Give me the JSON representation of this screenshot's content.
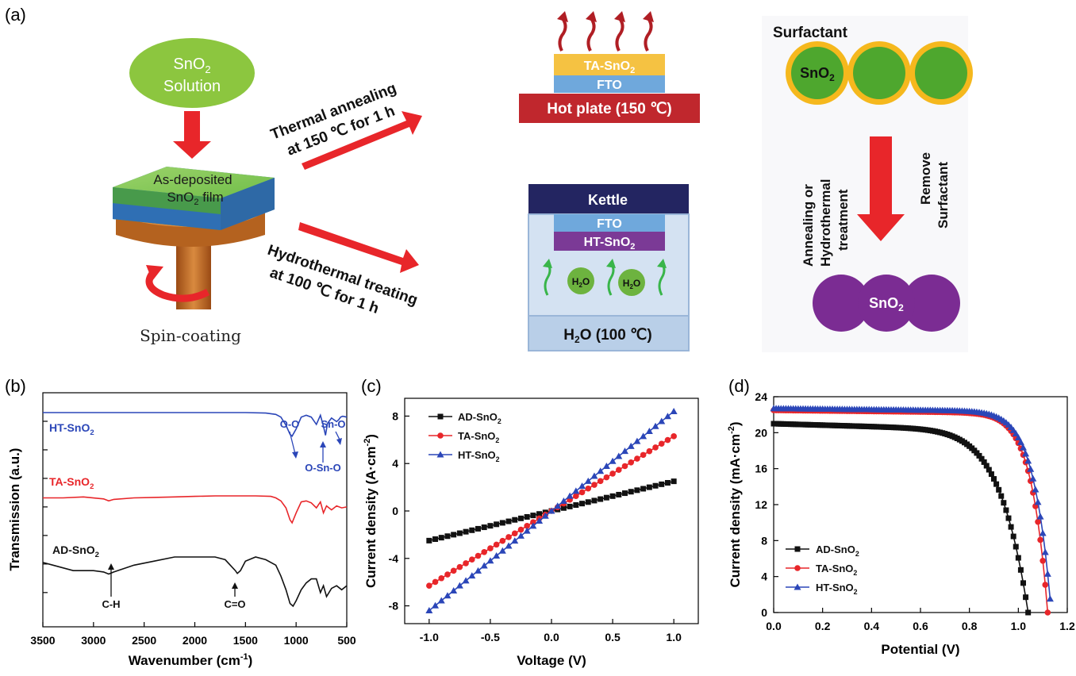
{
  "panels": {
    "a": "(a)",
    "b": "(b)",
    "c": "(c)",
    "d": "(d)"
  },
  "schematic": {
    "solution_line1": "SnO",
    "solution_sub": "2",
    "solution_line2": "Solution",
    "film_line1": "As-deposited",
    "film_line2a": "SnO",
    "film_sub": "2",
    "film_line2b": " film",
    "spin": "Spin-coating",
    "thermal_line1": "Thermal annealing",
    "thermal_line2": "at 150 ℃ for 1 h",
    "hydro_line1": "Hydrothermal treating",
    "hydro_line2": "at 100 ℃  for 1 h",
    "ta_layer": "TA-SnO",
    "fto": "FTO",
    "hotplate": "Hot plate (150 ℃)",
    "kettle": "Kettle",
    "ht_layer": "HT-SnO",
    "h2o_mol": "H",
    "h2o_mol_sub": "2",
    "h2o_mol_end": "O",
    "h2o_bath": "H",
    "h2o_bath_end": "O (100 ℃)",
    "surfactant": "Surfactant",
    "sno2": "SnO",
    "sub2": "2",
    "treat_line1": "Annealing or",
    "treat_line2": "Hydrothermal",
    "treat_line3": "treatment",
    "remove_line1": "Remove",
    "remove_line2": "Surfactant"
  },
  "colors": {
    "black": "#111111",
    "red": "#e8262a",
    "blue": "#2b46b8",
    "arrow_red": "#e8262a",
    "purple": "#7b2c93",
    "green": "#5aad3a",
    "gold": "#f5b81d",
    "navy": "#232561",
    "fto_blue": "#6fa8dc",
    "hotplate": "#c0272d"
  },
  "chart_data": [
    {
      "type": "line",
      "panel": "b",
      "xlabel": "Wavenumber (cm",
      "xlabel_sup": "-1",
      "xlabel_end": ")",
      "ylabel": "Transmission (a.u.)",
      "xlim": [
        3500,
        500
      ],
      "xticks": [
        "3500",
        "3000",
        "2500",
        "2000",
        "1500",
        "1000",
        "500"
      ],
      "series": [
        {
          "name": "HT-SnO",
          "name_sub": "2",
          "color": "#2b46b8",
          "x": [
            3500,
            3000,
            2500,
            2000,
            1500,
            1300,
            1200,
            1150,
            1100,
            1060,
            1040,
            1000,
            950,
            900,
            850,
            800,
            760,
            730,
            710,
            690,
            650,
            600,
            580,
            560,
            540,
            500
          ],
          "y": [
            0.98,
            0.98,
            0.98,
            0.98,
            0.98,
            0.975,
            0.96,
            0.93,
            0.84,
            0.74,
            0.72,
            0.8,
            0.93,
            0.95,
            0.93,
            0.85,
            0.95,
            0.83,
            0.73,
            0.86,
            0.92,
            0.88,
            0.9,
            0.93,
            0.94,
            0.93
          ]
        },
        {
          "name": "TA-SnO",
          "name_sub": "2",
          "color": "#e8262a",
          "x": [
            3500,
            3300,
            3100,
            2900,
            2850,
            2800,
            2600,
            2400,
            2200,
            2000,
            1800,
            1600,
            1400,
            1250,
            1200,
            1150,
            1100,
            1060,
            1040,
            1000,
            950,
            900,
            850,
            800,
            760,
            730,
            700,
            650,
            600,
            550,
            500
          ],
          "y": [
            0.6,
            0.6,
            0.61,
            0.59,
            0.57,
            0.585,
            0.6,
            0.605,
            0.61,
            0.615,
            0.62,
            0.62,
            0.62,
            0.615,
            0.6,
            0.57,
            0.5,
            0.38,
            0.35,
            0.45,
            0.56,
            0.57,
            0.55,
            0.5,
            0.56,
            0.45,
            0.52,
            0.48,
            0.52,
            0.5,
            0.51
          ]
        },
        {
          "name": "AD-SnO",
          "name_sub": "2",
          "color": "#111111",
          "x": [
            3500,
            3400,
            3200,
            3000,
            2900,
            2850,
            2800,
            2600,
            2400,
            2200,
            2000,
            1800,
            1700,
            1650,
            1600,
            1580,
            1550,
            1500,
            1400,
            1300,
            1200,
            1150,
            1100,
            1060,
            1030,
            1000,
            950,
            900,
            850,
            800,
            760,
            730,
            700,
            650,
            600,
            550,
            500
          ],
          "y": [
            0.25,
            0.23,
            0.19,
            0.19,
            0.18,
            0.165,
            0.18,
            0.23,
            0.26,
            0.29,
            0.29,
            0.29,
            0.27,
            0.23,
            0.19,
            0.17,
            0.19,
            0.26,
            0.29,
            0.27,
            0.23,
            0.15,
            0.05,
            -0.05,
            -0.07,
            -0.03,
            0.05,
            0.1,
            0.13,
            0.13,
            0.03,
            0.08,
            0.0,
            0.06,
            0.08,
            0.05,
            0.08
          ]
        }
      ],
      "annotations": [
        "O-O",
        "Sn-O",
        "O-Sn-O",
        "C-H",
        "C=O"
      ]
    },
    {
      "type": "line",
      "panel": "c",
      "xlabel": "Voltage (V)",
      "ylabel": "Current density (A·cm",
      "ylabel_sup": "-2",
      "ylabel_end": ")",
      "xlim": [
        -1.2,
        1.2
      ],
      "ylim": [
        -9.5,
        9.5
      ],
      "xticks": [
        "-1.0",
        "-0.5",
        "0.0",
        "0.5",
        "1.0"
      ],
      "xtick_values": [
        -1.0,
        -0.5,
        0.0,
        0.5,
        1.0
      ],
      "yticks": [
        "-8",
        "-4",
        "0",
        "4",
        "8"
      ],
      "ytick_values": [
        -8,
        -4,
        0,
        4,
        8
      ],
      "series": [
        {
          "name": "AD-SnO",
          "name_sub": "2",
          "color": "#111111",
          "marker": "square",
          "slope": 2.5
        },
        {
          "name": "TA-SnO",
          "name_sub": "2",
          "color": "#e8262a",
          "marker": "circle",
          "slope": 6.3
        },
        {
          "name": "HT-SnO",
          "name_sub": "2",
          "color": "#2b46b8",
          "marker": "triangle",
          "slope": 8.4
        }
      ]
    },
    {
      "type": "line",
      "panel": "d",
      "xlabel": "Potential (V)",
      "ylabel": "Current density (mA·cm",
      "ylabel_sup": "-2",
      "ylabel_end": ")",
      "xlim": [
        0.0,
        1.2
      ],
      "ylim": [
        0,
        24
      ],
      "xticks": [
        "0.0",
        "0.2",
        "0.4",
        "0.6",
        "0.8",
        "1.0",
        "1.2"
      ],
      "xtick_values": [
        0.0,
        0.2,
        0.4,
        0.6,
        0.8,
        1.0,
        1.2
      ],
      "yticks": [
        "0",
        "4",
        "8",
        "12",
        "16",
        "20",
        "24"
      ],
      "ytick_values": [
        0,
        4,
        8,
        12,
        16,
        20,
        24
      ],
      "series": [
        {
          "name": "AD-SnO",
          "name_sub": "2",
          "color": "#111111",
          "marker": "square",
          "jsc": 21.0,
          "voc": 1.04,
          "n": 2.2,
          "slope0": 0.8
        },
        {
          "name": "TA-SnO",
          "name_sub": "2",
          "color": "#e8262a",
          "marker": "circle",
          "jsc": 22.5,
          "voc": 1.12,
          "n": 1.2,
          "slope0": 0.3
        },
        {
          "name": "HT-SnO",
          "name_sub": "2",
          "color": "#2b46b8",
          "marker": "triangle",
          "jsc": 22.7,
          "voc": 1.135,
          "n": 1.25,
          "slope0": 0.3
        }
      ]
    }
  ]
}
